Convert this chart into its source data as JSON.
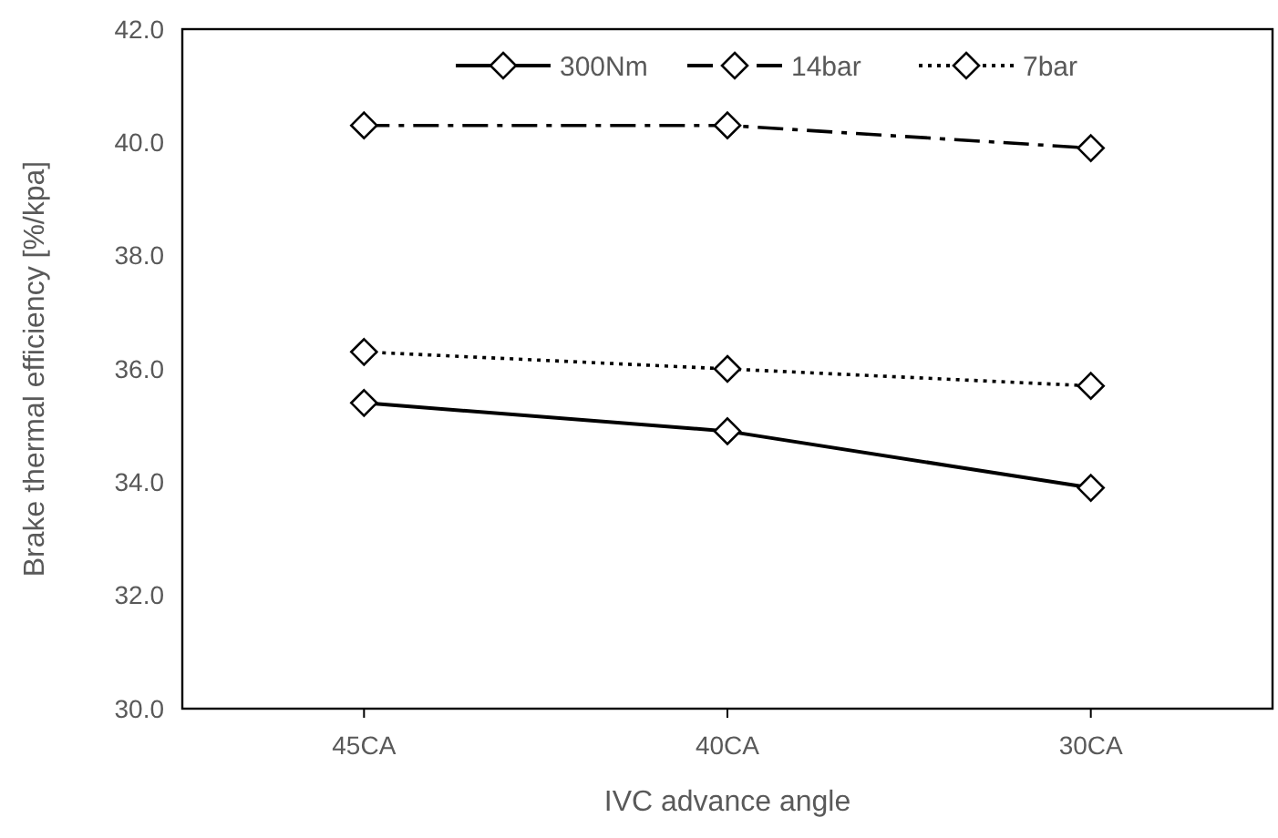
{
  "chart_data": {
    "type": "line",
    "xlabel": "IVC advance angle",
    "ylabel": "Brake thermal efficiency [%/kpa]",
    "categories": [
      "45CA",
      "40CA",
      "30CA"
    ],
    "series": [
      {
        "name": "300Nm",
        "color": "#000000",
        "line_style": "solid",
        "values": [
          35.4,
          34.9,
          33.9
        ]
      },
      {
        "name": "14bar",
        "color": "#000000",
        "line_style": "dashed",
        "values": [
          40.3,
          40.3,
          39.9
        ]
      },
      {
        "name": "7bar",
        "color": "#000000",
        "line_style": "dotted",
        "values": [
          36.3,
          36.0,
          35.7
        ]
      }
    ],
    "ylim": [
      30,
      42
    ],
    "yticks": [
      {
        "value": 30,
        "label": "30.0"
      },
      {
        "value": 32,
        "label": "32.0"
      },
      {
        "value": 34,
        "label": "34.0"
      },
      {
        "value": 36,
        "label": "36.0"
      },
      {
        "value": 38,
        "label": "38.0"
      },
      {
        "value": 40,
        "label": "40.0"
      },
      {
        "value": 42,
        "label": "42.0"
      }
    ],
    "grid": false,
    "legend": "top",
    "marker": "diamond"
  }
}
